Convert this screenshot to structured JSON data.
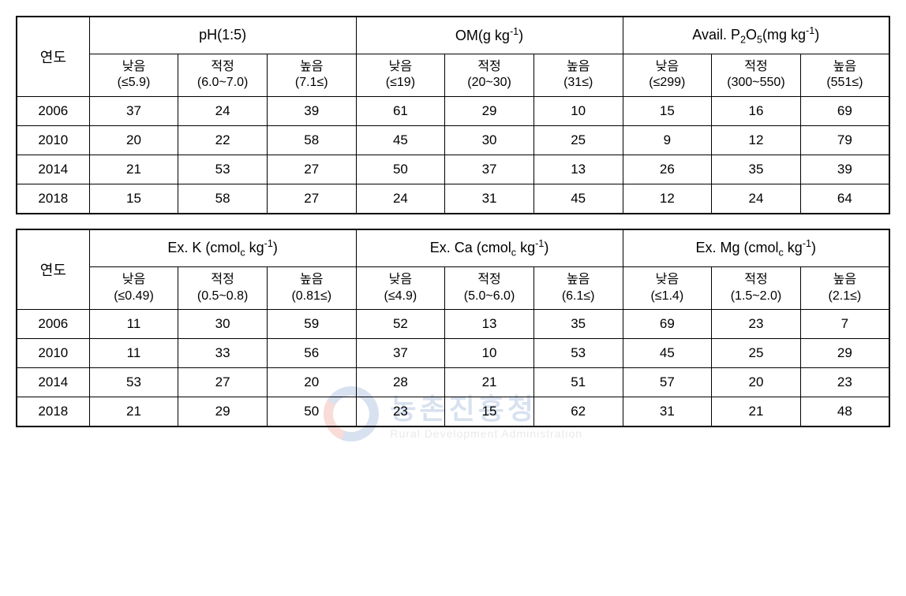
{
  "watermark": {
    "kr": "농촌진흥청",
    "en": "Rural Development Administration"
  },
  "labels": {
    "year": "연도",
    "low": "낮음",
    "mid": "적정",
    "high": "높음"
  },
  "table1": {
    "groups": [
      {
        "title_html": "pH(1:5)",
        "ranges": [
          "(≤5.9)",
          "(6.0~7.0)",
          "(7.1≤)"
        ]
      },
      {
        "title_html": "OM(g kg<sup>-1</sup>)",
        "ranges": [
          "(≤19)",
          "(20~30)",
          "(31≤)"
        ]
      },
      {
        "title_html": "Avail. P<sub>2</sub>O<sub>5</sub>(mg kg<sup>-1</sup>)",
        "ranges": [
          "(≤299)",
          "(300~550)",
          "(551≤)"
        ]
      }
    ],
    "rows": [
      {
        "year": "2006",
        "vals": [
          "37",
          "24",
          "39",
          "61",
          "29",
          "10",
          "15",
          "16",
          "69"
        ]
      },
      {
        "year": "2010",
        "vals": [
          "20",
          "22",
          "58",
          "45",
          "30",
          "25",
          "9",
          "12",
          "79"
        ]
      },
      {
        "year": "2014",
        "vals": [
          "21",
          "53",
          "27",
          "50",
          "37",
          "13",
          "26",
          "35",
          "39"
        ]
      },
      {
        "year": "2018",
        "vals": [
          "15",
          "58",
          "27",
          "24",
          "31",
          "45",
          "12",
          "24",
          "64"
        ]
      }
    ]
  },
  "table2": {
    "groups": [
      {
        "title_html": "Ex. K (cmol<sub>c</sub> kg<sup>-1</sup>)",
        "ranges": [
          "(≤0.49)",
          "(0.5~0.8)",
          "(0.81≤)"
        ]
      },
      {
        "title_html": "Ex. Ca (cmol<sub>c</sub> kg<sup>-1</sup>)",
        "ranges": [
          "(≤4.9)",
          "(5.0~6.0)",
          "(6.1≤)"
        ]
      },
      {
        "title_html": "Ex. Mg (cmol<sub>c</sub> kg<sup>-1</sup>)",
        "ranges": [
          "(≤1.4)",
          "(1.5~2.0)",
          "(2.1≤)"
        ]
      }
    ],
    "rows": [
      {
        "year": "2006",
        "vals": [
          "11",
          "30",
          "59",
          "52",
          "13",
          "35",
          "69",
          "23",
          "7"
        ]
      },
      {
        "year": "2010",
        "vals": [
          "11",
          "33",
          "56",
          "37",
          "10",
          "53",
          "45",
          "25",
          "29"
        ]
      },
      {
        "year": "2014",
        "vals": [
          "53",
          "27",
          "20",
          "28",
          "21",
          "51",
          "57",
          "20",
          "23"
        ]
      },
      {
        "year": "2018",
        "vals": [
          "21",
          "29",
          "50",
          "23",
          "15",
          "62",
          "31",
          "21",
          "48"
        ]
      }
    ]
  },
  "styling": {
    "border_color": "#000000",
    "outer_border_width": 2,
    "inner_border_width": 1,
    "background_color": "#ffffff",
    "font_family": "Arial",
    "cell_fontsize": 17,
    "header_fontsize": 18,
    "subheader_fontsize": 16
  }
}
